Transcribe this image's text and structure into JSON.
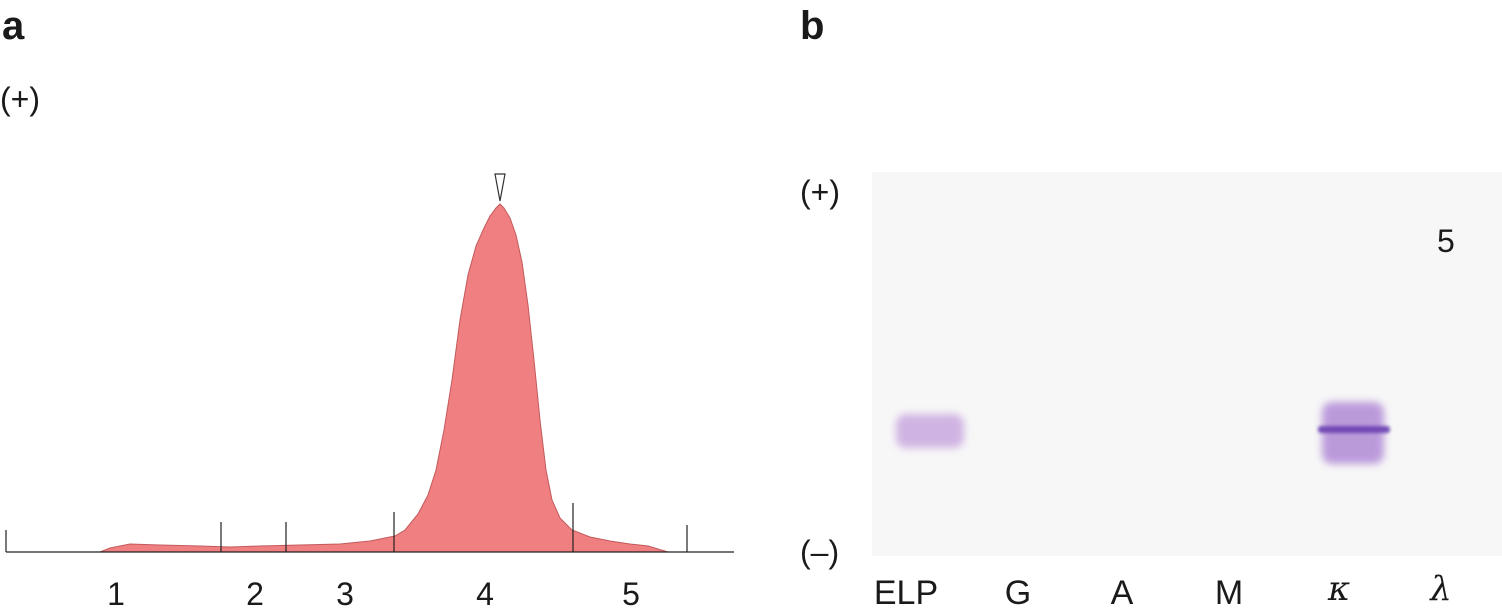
{
  "panel_a": {
    "letter": "a",
    "polarity_plus": "(+)",
    "fraction_labels": [
      "1",
      "2",
      "3",
      "4",
      "5"
    ],
    "curve_fill_color": "#f07f81",
    "peak_marker_icon": "triangle-down-icon"
  },
  "panel_b": {
    "letter": "b",
    "polarity_plus": "(+)",
    "polarity_minus": "(–)",
    "corner_number": "5",
    "lanes": [
      "ELP",
      "G",
      "A",
      "M",
      "κ",
      "λ"
    ],
    "band_color": "#8a5cc0",
    "gel_background": "#f7f7f7"
  }
}
